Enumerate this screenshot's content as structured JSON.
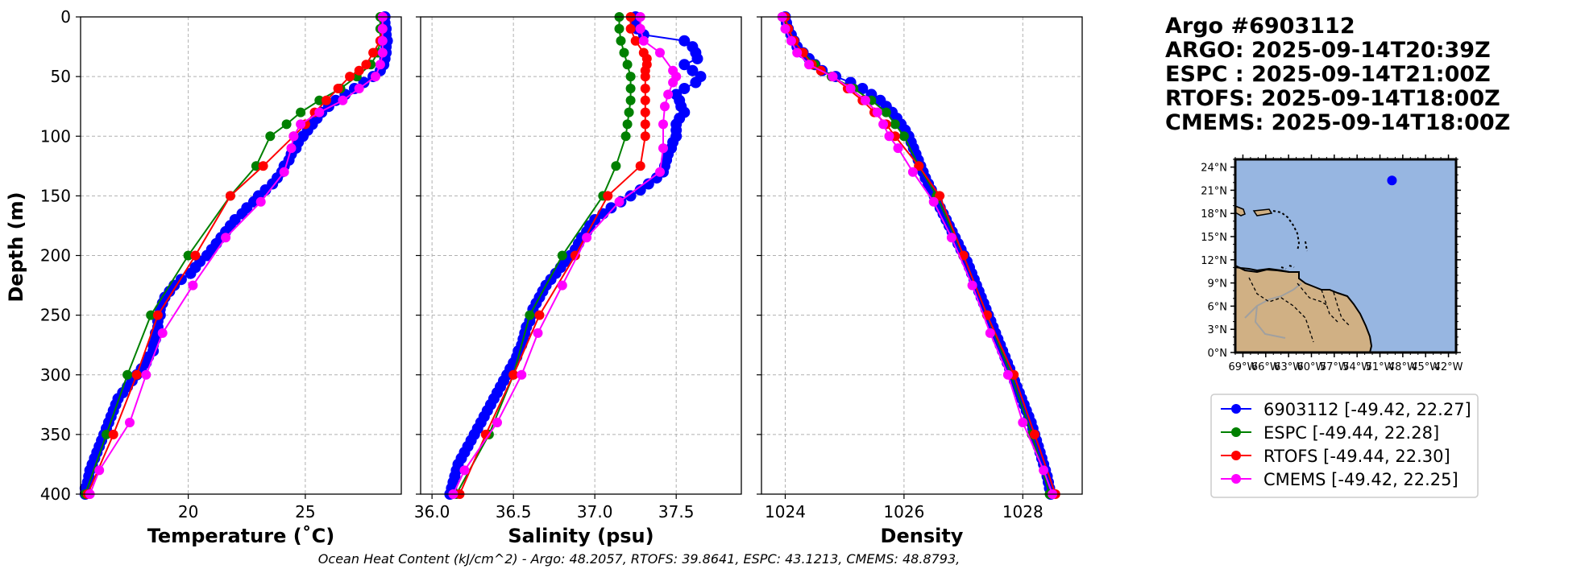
{
  "header": {
    "lines": [
      "Argo #6903112",
      "ARGO: 2025-09-14T20:39Z",
      "ESPC : 2025-09-14T21:00Z",
      "RTOFS: 2025-09-14T18:00Z",
      "CMEMS: 2025-09-14T18:00Z"
    ]
  },
  "footer": {
    "ohc_text": "Ocean Heat Content (kJ/cm^2) - Argo: 48.2057,  RTOFS: 39.8641,  ESPC: 43.1213,  CMEMS: 48.8793,"
  },
  "colors": {
    "argo": "#0000ff",
    "espc": "#008000",
    "rtofs": "#ff0000",
    "cmems": "#ff00ff"
  },
  "legend": [
    {
      "key": "argo",
      "label": "6903112 [-49.42, 22.27]"
    },
    {
      "key": "espc",
      "label": "ESPC [-49.44, 22.28]"
    },
    {
      "key": "rtofs",
      "label": "RTOFS [-49.44, 22.30]"
    },
    {
      "key": "cmems",
      "label": "CMEMS [-49.42, 22.25]"
    }
  ],
  "map": {
    "lat_ticks": [
      "24°N",
      "21°N",
      "18°N",
      "15°N",
      "12°N",
      "9°N",
      "6°N",
      "3°N",
      "0°N"
    ],
    "lon_ticks": [
      "69°W",
      "66°W",
      "63°W",
      "60°W",
      "57°W",
      "54°W",
      "51°W",
      "48°W",
      "45°W",
      "42°W"
    ],
    "ocean_color": "#97b6e1",
    "land_color": "#d0b084",
    "lon_range": [
      -70,
      -41
    ],
    "lat_range": [
      0,
      25
    ],
    "float_position": {
      "lon": -49.42,
      "lat": 22.27
    }
  },
  "chart_data": [
    {
      "type": "line",
      "title": "",
      "xlabel": "Temperature (˚C)",
      "ylabel": "Depth (m)",
      "xlim": [
        15.4,
        29.1
      ],
      "ylim": [
        400,
        0
      ],
      "x_ticks": [
        20,
        25
      ],
      "y_ticks": [
        0,
        50,
        100,
        150,
        200,
        250,
        300,
        350,
        400
      ],
      "series": [
        {
          "name": "argo",
          "depth": [
            0,
            5,
            10,
            15,
            20,
            25,
            30,
            35,
            40,
            45,
            50,
            55,
            60,
            65,
            70,
            75,
            80,
            85,
            90,
            95,
            100,
            105,
            110,
            115,
            120,
            125,
            130,
            135,
            140,
            145,
            150,
            155,
            160,
            165,
            170,
            175,
            180,
            185,
            190,
            195,
            200,
            205,
            210,
            215,
            220,
            225,
            230,
            235,
            240,
            245,
            250,
            255,
            260,
            265,
            270,
            275,
            280,
            285,
            290,
            295,
            300,
            305,
            310,
            315,
            320,
            325,
            330,
            335,
            340,
            345,
            350,
            355,
            360,
            365,
            370,
            375,
            380,
            385,
            390,
            395,
            400
          ],
          "values": [
            28.4,
            28.4,
            28.45,
            28.45,
            28.5,
            28.45,
            28.45,
            28.4,
            28.35,
            28.2,
            27.9,
            27.5,
            27.1,
            26.7,
            26.3,
            26.0,
            25.7,
            25.5,
            25.3,
            25.1,
            24.9,
            24.7,
            24.6,
            24.4,
            24.3,
            24.1,
            24.0,
            23.8,
            23.6,
            23.3,
            23.0,
            22.8,
            22.5,
            22.3,
            22.0,
            21.8,
            21.6,
            21.4,
            21.2,
            21.0,
            20.8,
            20.5,
            20.3,
            20.1,
            19.7,
            19.4,
            19.2,
            19.0,
            18.9,
            18.8,
            18.8,
            18.7,
            18.7,
            18.6,
            18.6,
            18.5,
            18.5,
            18.3,
            18.2,
            18.0,
            17.8,
            17.6,
            17.4,
            17.2,
            17.0,
            16.9,
            16.8,
            16.7,
            16.6,
            16.5,
            16.4,
            16.3,
            16.2,
            16.1,
            16.0,
            15.9,
            15.8,
            15.75,
            15.7,
            15.6,
            15.6
          ]
        },
        {
          "name": "espc",
          "depth": [
            0,
            10,
            20,
            30,
            40,
            50,
            60,
            70,
            80,
            90,
            100,
            125,
            150,
            200,
            250,
            300,
            350,
            400
          ],
          "values": [
            28.2,
            28.2,
            28.2,
            28.1,
            27.8,
            27.2,
            26.5,
            25.6,
            24.8,
            24.2,
            23.5,
            22.9,
            21.8,
            20.0,
            18.4,
            17.4,
            16.5,
            15.6
          ]
        },
        {
          "name": "rtofs",
          "depth": [
            0,
            10,
            20,
            30,
            40,
            45,
            50,
            60,
            70,
            80,
            90,
            100,
            125,
            150,
            200,
            250,
            300,
            350,
            400
          ],
          "values": [
            28.3,
            28.3,
            28.2,
            27.9,
            27.6,
            27.3,
            26.9,
            26.4,
            25.9,
            25.4,
            25.0,
            24.5,
            23.2,
            21.8,
            20.3,
            18.7,
            17.8,
            16.8,
            15.7
          ]
        },
        {
          "name": "cmems",
          "depth": [
            0,
            10,
            20,
            30,
            40,
            50,
            60,
            70,
            80,
            90,
            100,
            110,
            130,
            155,
            185,
            225,
            265,
            300,
            340,
            380,
            400
          ],
          "values": [
            28.3,
            28.3,
            28.3,
            28.3,
            28.2,
            28.0,
            27.3,
            26.6,
            25.6,
            24.8,
            24.5,
            24.4,
            24.1,
            23.1,
            21.6,
            20.2,
            18.9,
            18.2,
            17.5,
            16.2,
            15.8
          ]
        }
      ]
    },
    {
      "type": "line",
      "title": "",
      "xlabel": "Salinity (psu)",
      "ylabel": "",
      "xlim": [
        35.93,
        37.9
      ],
      "ylim": [
        400,
        0
      ],
      "x_ticks": [
        36.0,
        36.5,
        37.0,
        37.5
      ],
      "x_tick_labels": [
        "36.0",
        "36.5",
        "37.0",
        "37.5"
      ],
      "y_ticks": [
        0,
        50,
        100,
        150,
        200,
        250,
        300,
        350,
        400
      ],
      "series": [
        {
          "name": "argo",
          "depth": [
            0,
            5,
            10,
            15,
            20,
            25,
            30,
            35,
            40,
            45,
            50,
            55,
            60,
            65,
            70,
            75,
            80,
            85,
            90,
            95,
            100,
            105,
            110,
            115,
            120,
            125,
            130,
            135,
            140,
            145,
            150,
            155,
            160,
            165,
            170,
            175,
            180,
            185,
            190,
            195,
            200,
            205,
            210,
            215,
            220,
            225,
            230,
            235,
            240,
            245,
            250,
            255,
            260,
            265,
            270,
            275,
            280,
            285,
            290,
            295,
            300,
            305,
            310,
            315,
            320,
            325,
            330,
            335,
            340,
            345,
            350,
            355,
            360,
            365,
            370,
            375,
            380,
            385,
            390,
            395,
            400
          ],
          "values": [
            37.25,
            37.25,
            37.26,
            37.3,
            37.55,
            37.6,
            37.62,
            37.63,
            37.55,
            37.6,
            37.65,
            37.62,
            37.55,
            37.5,
            37.52,
            37.53,
            37.55,
            37.52,
            37.5,
            37.5,
            37.5,
            37.48,
            37.47,
            37.45,
            37.44,
            37.43,
            37.42,
            37.38,
            37.33,
            37.28,
            37.22,
            37.16,
            37.1,
            37.05,
            37.0,
            36.97,
            36.95,
            36.92,
            36.9,
            36.88,
            36.85,
            36.82,
            36.79,
            36.76,
            36.73,
            36.7,
            36.68,
            36.66,
            36.64,
            36.62,
            36.61,
            36.6,
            36.58,
            36.57,
            36.56,
            36.55,
            36.53,
            36.52,
            36.5,
            36.48,
            36.46,
            36.44,
            36.42,
            36.4,
            36.38,
            36.36,
            36.34,
            36.32,
            36.3,
            36.28,
            36.26,
            36.24,
            36.22,
            36.2,
            36.18,
            36.16,
            36.15,
            36.14,
            36.13,
            36.12,
            36.11
          ]
        },
        {
          "name": "espc",
          "depth": [
            0,
            10,
            20,
            30,
            40,
            50,
            60,
            70,
            80,
            90,
            100,
            125,
            150,
            200,
            250,
            300,
            350,
            400
          ],
          "values": [
            37.15,
            37.15,
            37.16,
            37.18,
            37.2,
            37.22,
            37.22,
            37.22,
            37.21,
            37.2,
            37.19,
            37.13,
            37.05,
            36.8,
            36.6,
            36.5,
            36.35,
            36.15
          ]
        },
        {
          "name": "rtofs",
          "depth": [
            0,
            10,
            20,
            30,
            35,
            40,
            45,
            50,
            60,
            70,
            80,
            90,
            100,
            125,
            150,
            200,
            250,
            300,
            350,
            400
          ],
          "values": [
            37.22,
            37.22,
            37.25,
            37.3,
            37.32,
            37.32,
            37.31,
            37.31,
            37.31,
            37.31,
            37.31,
            37.31,
            37.31,
            37.28,
            37.08,
            36.88,
            36.66,
            36.5,
            36.33,
            36.17
          ]
        },
        {
          "name": "cmems",
          "depth": [
            0,
            10,
            20,
            30,
            45,
            50,
            55,
            65,
            75,
            90,
            110,
            130,
            155,
            185,
            225,
            265,
            300,
            340,
            380,
            400
          ],
          "values": [
            37.28,
            37.28,
            37.3,
            37.4,
            37.48,
            37.5,
            37.48,
            37.45,
            37.43,
            37.42,
            37.42,
            37.4,
            37.15,
            36.95,
            36.8,
            36.65,
            36.55,
            36.4,
            36.2,
            36.13
          ]
        }
      ]
    },
    {
      "type": "line",
      "title": "",
      "xlabel": "Density",
      "ylabel": "",
      "xlim": [
        1023.6,
        1029.0
      ],
      "ylim": [
        400,
        0
      ],
      "x_ticks": [
        1024,
        1026,
        1028
      ],
      "y_ticks": [
        0,
        50,
        100,
        150,
        200,
        250,
        300,
        350,
        400
      ],
      "series": [
        {
          "name": "argo",
          "depth": [
            0,
            5,
            10,
            15,
            20,
            25,
            30,
            35,
            40,
            45,
            50,
            55,
            60,
            65,
            70,
            75,
            80,
            85,
            90,
            95,
            100,
            105,
            110,
            115,
            120,
            125,
            130,
            135,
            140,
            145,
            150,
            155,
            160,
            165,
            170,
            175,
            180,
            185,
            190,
            195,
            200,
            205,
            210,
            215,
            220,
            225,
            230,
            235,
            240,
            245,
            250,
            255,
            260,
            265,
            270,
            275,
            280,
            285,
            290,
            295,
            300,
            305,
            310,
            315,
            320,
            325,
            330,
            335,
            340,
            345,
            350,
            355,
            360,
            365,
            370,
            375,
            380,
            385,
            390,
            395,
            400
          ],
          "values": [
            1024.0,
            1024.02,
            1024.05,
            1024.1,
            1024.15,
            1024.2,
            1024.3,
            1024.4,
            1024.5,
            1024.62,
            1024.85,
            1025.1,
            1025.3,
            1025.45,
            1025.6,
            1025.7,
            1025.8,
            1025.88,
            1025.95,
            1026.02,
            1026.08,
            1026.12,
            1026.16,
            1026.2,
            1026.24,
            1026.28,
            1026.32,
            1026.36,
            1026.41,
            1026.46,
            1026.51,
            1026.56,
            1026.61,
            1026.66,
            1026.71,
            1026.76,
            1026.81,
            1026.86,
            1026.91,
            1026.96,
            1027.01,
            1027.06,
            1027.1,
            1027.14,
            1027.18,
            1027.22,
            1027.26,
            1027.3,
            1027.34,
            1027.38,
            1027.42,
            1027.46,
            1027.5,
            1027.54,
            1027.58,
            1027.62,
            1027.66,
            1027.7,
            1027.74,
            1027.78,
            1027.82,
            1027.86,
            1027.9,
            1027.94,
            1027.98,
            1028.02,
            1028.06,
            1028.1,
            1028.14,
            1028.17,
            1028.2,
            1028.23,
            1028.26,
            1028.29,
            1028.32,
            1028.35,
            1028.38,
            1028.41,
            1028.43,
            1028.45,
            1028.47
          ]
        },
        {
          "name": "espc",
          "depth": [
            0,
            10,
            20,
            30,
            40,
            50,
            60,
            70,
            80,
            90,
            100,
            125,
            150,
            200,
            250,
            300,
            350,
            400
          ],
          "values": [
            1023.95,
            1024.05,
            1024.15,
            1024.3,
            1024.5,
            1024.78,
            1025.15,
            1025.45,
            1025.7,
            1025.85,
            1026.0,
            1026.25,
            1026.55,
            1027.0,
            1027.4,
            1027.8,
            1028.15,
            1028.45
          ]
        },
        {
          "name": "rtofs",
          "depth": [
            0,
            10,
            20,
            30,
            40,
            45,
            50,
            60,
            70,
            80,
            90,
            100,
            125,
            150,
            200,
            250,
            300,
            350,
            400
          ],
          "values": [
            1024.0,
            1024.05,
            1024.15,
            1024.3,
            1024.45,
            1024.6,
            1024.8,
            1025.05,
            1025.3,
            1025.5,
            1025.7,
            1025.85,
            1026.25,
            1026.6,
            1027.0,
            1027.4,
            1027.85,
            1028.2,
            1028.55
          ]
        },
        {
          "name": "cmems",
          "depth": [
            0,
            10,
            20,
            30,
            40,
            50,
            60,
            70,
            80,
            90,
            100,
            110,
            130,
            155,
            185,
            225,
            265,
            300,
            340,
            380,
            400
          ],
          "values": [
            1023.95,
            1024.0,
            1024.1,
            1024.2,
            1024.4,
            1024.8,
            1025.1,
            1025.35,
            1025.55,
            1025.65,
            1025.75,
            1025.9,
            1026.15,
            1026.5,
            1026.8,
            1027.15,
            1027.45,
            1027.75,
            1028.0,
            1028.35,
            1028.5
          ]
        }
      ]
    }
  ]
}
